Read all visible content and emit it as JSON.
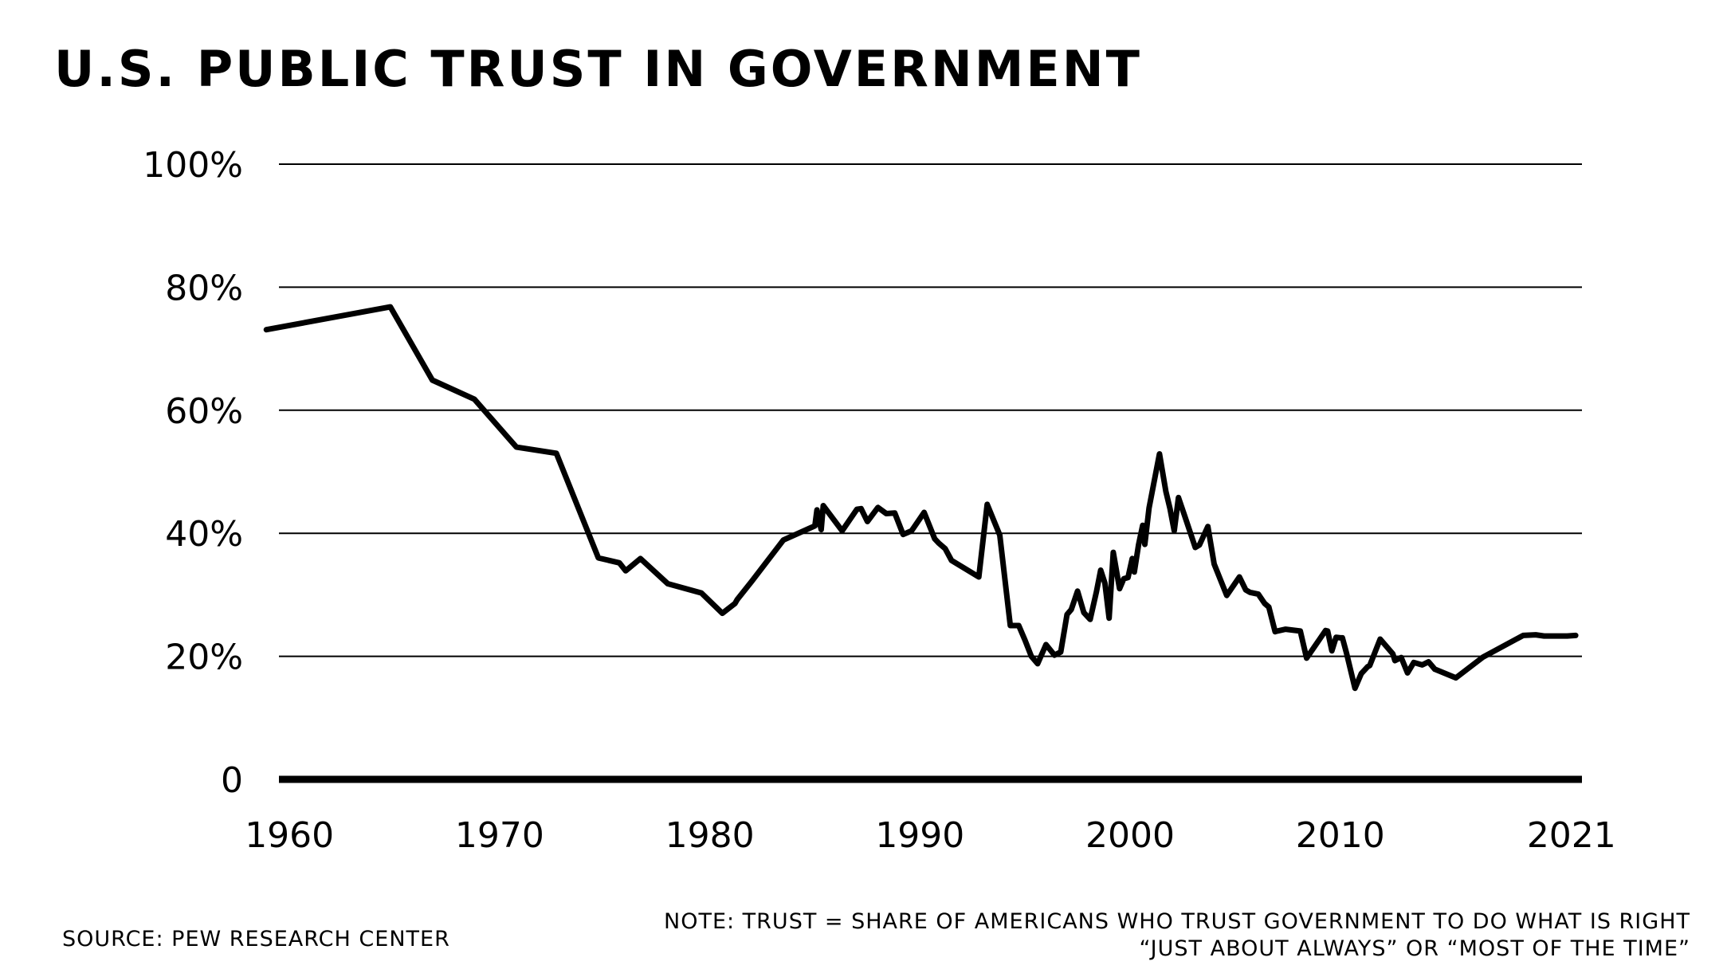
{
  "title": "U.S. PUBLIC TRUST IN GOVERNMENT",
  "source": "SOURCE: PEW RESEARCH CENTER",
  "note_line1": "NOTE: TRUST = SHARE OF AMERICANS WHO TRUST GOVERNMENT TO DO WHAT IS RIGHT",
  "note_line2": "“JUST ABOUT ALWAYS” OR “MOST OF THE TIME”",
  "chart_data": {
    "type": "line",
    "title": "U.S. PUBLIC TRUST IN GOVERNMENT",
    "xlabel": "",
    "ylabel": "",
    "xlim": [
      1959.5,
      2021.5
    ],
    "ylim": [
      0,
      100
    ],
    "grid": true,
    "line_color": "#000000",
    "x_ticks": [
      1960,
      1970,
      1980,
      1990,
      2000,
      2010,
      2021
    ],
    "x_tick_labels": [
      "1960",
      "1970",
      "1980",
      "1990",
      "2000",
      "2010",
      "2021"
    ],
    "y_ticks": [
      0,
      20,
      40,
      60,
      80,
      100
    ],
    "y_tick_labels": [
      "0",
      "20%",
      "40%",
      "60%",
      "80%",
      "100%"
    ],
    "series": [
      {
        "x": [
          1958.9,
          1964.8,
          1966.8,
          1968.8,
          1970.8,
          1972.7,
          1974.7,
          1975.7,
          1976.0,
          1976.7,
          1978.0,
          1979.6,
          1980.6,
          1981.2,
          1981.3,
          1982.0,
          1983.5,
          1985.0,
          1985.1,
          1985.3,
          1985.4,
          1986.3,
          1987.0,
          1987.2,
          1987.5,
          1988.0,
          1988.4,
          1988.8,
          1989.2,
          1989.6,
          1990.2,
          1990.7,
          1990.9,
          1991.2,
          1991.5,
          1992.8,
          1993.2,
          1993.8,
          1994.3,
          1994.7,
          1995.0,
          1995.3,
          1995.6,
          1996.0,
          1996.4,
          1996.7,
          1997.0,
          1997.2,
          1997.5,
          1997.8,
          1998.1,
          1998.4,
          1998.6,
          1998.8,
          1999.0,
          1999.2,
          1999.5,
          1999.7,
          1999.9,
          2000.1,
          2000.2,
          2000.4,
          2000.6,
          2000.7,
          2000.9,
          2001.1,
          2001.4,
          2001.7,
          2001.9,
          2002.1,
          2002.3,
          2002.6,
          2003.1,
          2003.3,
          2003.7,
          2004.0,
          2004.6,
          2005.2,
          2005.5,
          2005.7,
          2006.1,
          2006.4,
          2006.6,
          2006.9,
          2007.0,
          2007.4,
          2008.1,
          2008.4,
          2009.3,
          2009.4,
          2009.6,
          2009.8,
          2010.0,
          2010.1,
          2010.3,
          2010.7,
          2011.0,
          2011.3,
          2011.4,
          2011.9,
          2012.5,
          2012.6,
          2012.9,
          2013.2,
          2013.5,
          2013.9,
          2014.2,
          2014.5,
          2015.5,
          2016.8,
          2018.7,
          2019.3,
          2019.7,
          2020.2,
          2020.8,
          2021.2
        ],
        "values": [
          73.1,
          76.8,
          64.9,
          61.8,
          54.0,
          53.0,
          36.0,
          35.2,
          33.9,
          35.9,
          31.8,
          30.3,
          27.0,
          28.6,
          29.2,
          32.2,
          38.9,
          41.2,
          43.8,
          40.6,
          44.5,
          40.4,
          43.9,
          44.0,
          41.9,
          44.2,
          43.2,
          43.3,
          39.8,
          40.4,
          43.4,
          39.1,
          38.4,
          37.5,
          35.6,
          32.9,
          44.7,
          39.7,
          25.0,
          25.0,
          22.6,
          20.0,
          18.8,
          21.9,
          20.2,
          20.7,
          26.8,
          27.6,
          30.6,
          27.1,
          26.0,
          30.5,
          34.0,
          31.9,
          26.2,
          36.9,
          31.0,
          32.6,
          32.8,
          35.9,
          33.7,
          38.1,
          41.3,
          38.2,
          44.1,
          47.6,
          52.9,
          46.8,
          44.0,
          40.4,
          45.8,
          42.8,
          37.7,
          38.1,
          41.1,
          35.0,
          29.9,
          32.9,
          30.8,
          30.4,
          30.1,
          28.6,
          28.0,
          24.0,
          24.1,
          24.4,
          24.1,
          19.7,
          24.2,
          24.1,
          20.9,
          23.1,
          23.0,
          23.0,
          20.5,
          14.8,
          17.2,
          18.3,
          18.5,
          22.8,
          20.4,
          19.3,
          19.8,
          17.3,
          19.0,
          18.6,
          19.1,
          17.9,
          16.5,
          19.9,
          23.4,
          23.5,
          23.3,
          23.3,
          23.3,
          23.4
        ]
      }
    ]
  }
}
